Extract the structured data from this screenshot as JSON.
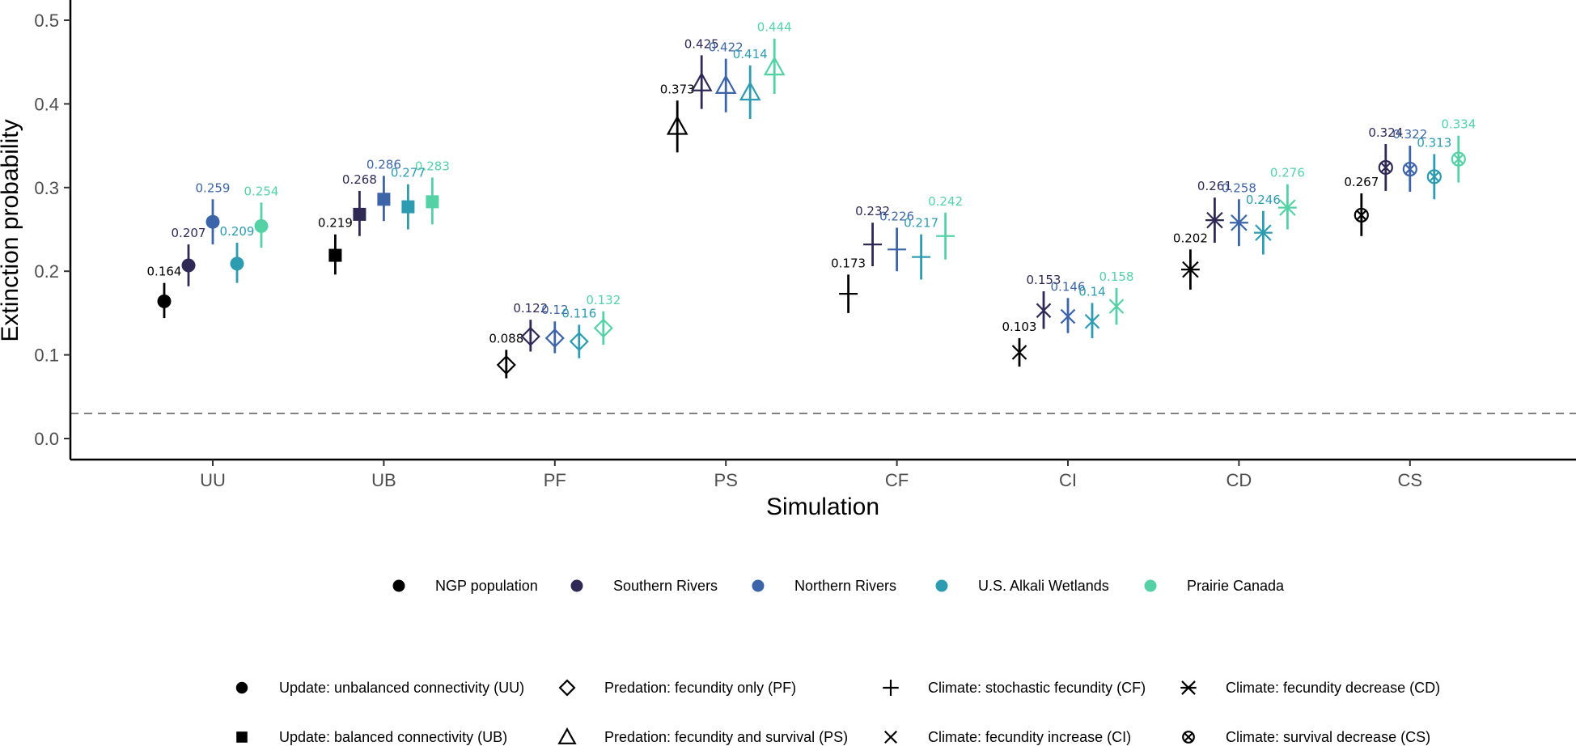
{
  "colors": {
    "NGP population": "#000000",
    "Southern Rivers": "#2e2a55",
    "Northern Rivers": "#3c64a8",
    "U.S. Alkali Wetlands": "#2d9bb0",
    "Prairie Canada": "#54d2a6"
  },
  "chart_data": {
    "type": "scatter",
    "xlabel": "Simulation",
    "ylabel": "Extinction probability",
    "ylim": [
      0,
      0.5
    ],
    "yticks": [
      "0.0",
      "0.1",
      "0.2",
      "0.3",
      "0.4",
      "0.5"
    ],
    "reference_line": 0.03,
    "categories": [
      "UU",
      "UB",
      "PF",
      "PS",
      "CF",
      "CI",
      "CD",
      "CS"
    ],
    "shapes": {
      "UU": "circle",
      "UB": "square",
      "PF": "diamond",
      "PS": "triangle",
      "CF": "plus",
      "CI": "cross",
      "CD": "asterisk",
      "CS": "circle-cross"
    },
    "series": [
      {
        "name": "NGP population",
        "values": [
          0.164,
          0.219,
          0.088,
          0.373,
          0.173,
          0.103,
          0.202,
          0.267
        ],
        "labels": [
          "0.164",
          "0.219",
          "0.088",
          "0.373",
          "0.173",
          "0.103",
          "0.202",
          "0.267"
        ],
        "lower": [
          0.144,
          0.196,
          0.072,
          0.342,
          0.15,
          0.086,
          0.178,
          0.242
        ],
        "upper": [
          0.186,
          0.244,
          0.106,
          0.404,
          0.196,
          0.12,
          0.226,
          0.293
        ]
      },
      {
        "name": "Southern Rivers",
        "values": [
          0.207,
          0.268,
          0.122,
          0.425,
          0.232,
          0.153,
          0.261,
          0.324
        ],
        "labels": [
          "0.207",
          "0.268",
          "0.122",
          "0.425",
          "0.232",
          "0.153",
          "0.261",
          "0.324"
        ],
        "lower": [
          0.182,
          0.242,
          0.104,
          0.394,
          0.206,
          0.131,
          0.234,
          0.296
        ],
        "upper": [
          0.232,
          0.296,
          0.142,
          0.458,
          0.258,
          0.176,
          0.288,
          0.352
        ]
      },
      {
        "name": "Northern Rivers",
        "values": [
          0.259,
          0.286,
          0.12,
          0.422,
          0.226,
          0.146,
          0.258,
          0.322
        ],
        "labels": [
          "0.259",
          "0.286",
          "0.12",
          "0.422",
          "0.226",
          "0.146",
          "0.258",
          "0.322"
        ],
        "lower": [
          0.232,
          0.26,
          0.102,
          0.39,
          0.2,
          0.126,
          0.23,
          0.295
        ],
        "upper": [
          0.286,
          0.314,
          0.14,
          0.454,
          0.252,
          0.168,
          0.286,
          0.35
        ]
      },
      {
        "name": "U.S. Alkali Wetlands",
        "values": [
          0.209,
          0.277,
          0.116,
          0.414,
          0.217,
          0.14,
          0.246,
          0.313
        ],
        "labels": [
          "0.209",
          "0.277",
          "0.116",
          "0.414",
          "0.217",
          "0.14",
          "0.246",
          "0.313"
        ],
        "lower": [
          0.186,
          0.25,
          0.096,
          0.382,
          0.19,
          0.12,
          0.22,
          0.286
        ],
        "upper": [
          0.234,
          0.304,
          0.136,
          0.446,
          0.244,
          0.162,
          0.272,
          0.34
        ]
      },
      {
        "name": "Prairie Canada",
        "values": [
          0.254,
          0.283,
          0.132,
          0.444,
          0.242,
          0.158,
          0.276,
          0.334
        ],
        "labels": [
          "0.254",
          "0.283",
          "0.132",
          "0.444",
          "0.242",
          "0.158",
          "0.276",
          "0.334"
        ],
        "lower": [
          0.228,
          0.256,
          0.112,
          0.412,
          0.214,
          0.136,
          0.25,
          0.306
        ],
        "upper": [
          0.282,
          0.312,
          0.152,
          0.478,
          0.27,
          0.18,
          0.304,
          0.362
        ]
      }
    ],
    "legend_populations": [
      "NGP population",
      "Southern Rivers",
      "Northern Rivers",
      "U.S. Alkali Wetlands",
      "Prairie Canada"
    ],
    "legend_simulations": [
      {
        "code": "UU",
        "label": "Update: unbalanced connectivity (UU)"
      },
      {
        "code": "PF",
        "label": "Predation: fecundity only (PF)"
      },
      {
        "code": "CF",
        "label": "Climate: stochastic fecundity (CF)"
      },
      {
        "code": "CD",
        "label": "Climate: fecundity decrease (CD)"
      },
      {
        "code": "UB",
        "label": "Update: balanced connectivity (UB)"
      },
      {
        "code": "PS",
        "label": "Predation: fecundity and survival (PS)"
      },
      {
        "code": "CI",
        "label": "Climate: fecundity increase (CI)"
      },
      {
        "code": "CS",
        "label": "Climate: survival decrease (CS)"
      }
    ]
  }
}
